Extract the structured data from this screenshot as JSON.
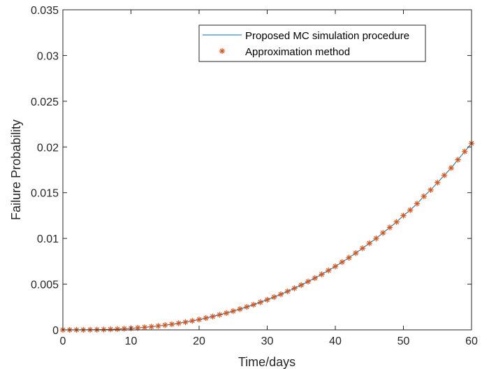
{
  "chart_data": {
    "type": "line",
    "xlabel": "Time/days",
    "ylabel": "Failure Probability",
    "xlim": [
      0,
      60
    ],
    "ylim": [
      0,
      0.035
    ],
    "xticks": [
      0,
      10,
      20,
      30,
      40,
      50,
      60
    ],
    "xtick_labels": [
      "0",
      "10",
      "20",
      "30",
      "40",
      "50",
      "60"
    ],
    "yticks": [
      0,
      0.005,
      0.01,
      0.015,
      0.02,
      0.025,
      0.03,
      0.035
    ],
    "ytick_labels": [
      "0",
      "0.005",
      "0.01",
      "0.015",
      "0.02",
      "0.025",
      "0.03",
      "0.035"
    ],
    "grid": false,
    "legend_position": "top-right",
    "x": [
      0,
      1,
      2,
      3,
      4,
      5,
      6,
      7,
      8,
      9,
      10,
      11,
      12,
      13,
      14,
      15,
      16,
      17,
      18,
      19,
      20,
      21,
      22,
      23,
      24,
      25,
      26,
      27,
      28,
      29,
      30,
      31,
      32,
      33,
      34,
      35,
      36,
      37,
      38,
      39,
      40,
      41,
      42,
      43,
      44,
      45,
      46,
      47,
      48,
      49,
      50,
      51,
      52,
      53,
      54,
      55,
      56,
      57,
      58,
      59,
      60
    ],
    "series": [
      {
        "name": "Proposed MC simulation procedure",
        "style": "line",
        "color": "#0072BD",
        "values": [
          0,
          1e-06,
          2e-06,
          6e-06,
          1.3e-05,
          2.4e-05,
          4e-05,
          6.1e-05,
          8.9e-05,
          0.000124,
          0.000166,
          0.000217,
          0.000277,
          0.000346,
          0.000425,
          0.000515,
          0.000615,
          0.000727,
          0.00085,
          0.000986,
          0.00113,
          0.00129,
          0.00146,
          0.00165,
          0.00184,
          0.00205,
          0.00227,
          0.00251,
          0.00275,
          0.00302,
          0.00329,
          0.00358,
          0.00389,
          0.00421,
          0.00455,
          0.0049,
          0.00528,
          0.00566,
          0.00607,
          0.0065,
          0.00694,
          0.00741,
          0.00789,
          0.0084,
          0.00892,
          0.00947,
          0.01,
          0.0106,
          0.0112,
          0.0118,
          0.0125,
          0.0131,
          0.0138,
          0.0146,
          0.0153,
          0.0161,
          0.0169,
          0.0177,
          0.0186,
          0.0195,
          0.0204
        ]
      },
      {
        "name": "Approximation method",
        "style": "marker",
        "marker": "asterisk",
        "color": "#D95319",
        "values": [
          0,
          1e-06,
          2e-06,
          6e-06,
          1.3e-05,
          2.4e-05,
          4e-05,
          6.1e-05,
          8.9e-05,
          0.000124,
          0.000166,
          0.000217,
          0.000277,
          0.000346,
          0.000425,
          0.000515,
          0.000615,
          0.000727,
          0.00085,
          0.000986,
          0.00113,
          0.00129,
          0.00146,
          0.00165,
          0.00184,
          0.00205,
          0.00227,
          0.00251,
          0.00275,
          0.00302,
          0.00329,
          0.00358,
          0.00389,
          0.00421,
          0.00455,
          0.0049,
          0.00528,
          0.00566,
          0.00607,
          0.0065,
          0.00694,
          0.00741,
          0.00789,
          0.0084,
          0.00892,
          0.00947,
          0.01,
          0.0106,
          0.0112,
          0.0118,
          0.0125,
          0.0131,
          0.0138,
          0.0146,
          0.0153,
          0.0161,
          0.0169,
          0.0177,
          0.0186,
          0.0195,
          0.0204
        ]
      }
    ]
  }
}
